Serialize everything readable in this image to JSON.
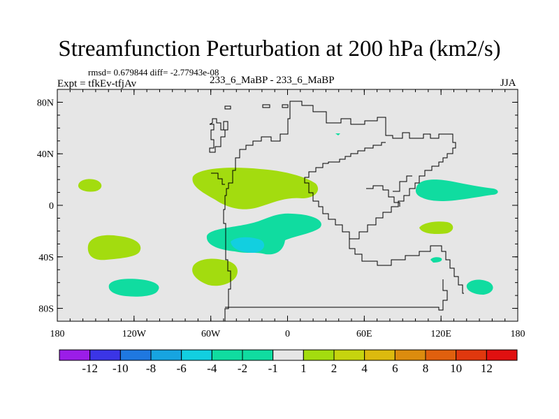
{
  "header": {
    "title": "Streamfunction Perturbation at 200 hPa (km2/s)",
    "stats": "rmsd= 0.679844 diff= -2.77943e-08",
    "expt": "Expt = tfkEv-tfjAv",
    "center": "233_6_MaBP - 233_6_MaBP",
    "season": "JJA"
  },
  "chart_data": {
    "type": "heatmap",
    "title": "Streamfunction Perturbation at 200 hPa (km2/s)",
    "xlim": [
      -180,
      180
    ],
    "ylim": [
      -90,
      90
    ],
    "x_ticks": [
      {
        "value": -180,
        "label": "180"
      },
      {
        "value": -120,
        "label": "120W"
      },
      {
        "value": -60,
        "label": "60W"
      },
      {
        "value": 0,
        "label": "0"
      },
      {
        "value": 60,
        "label": "60E"
      },
      {
        "value": 120,
        "label": "120E"
      },
      {
        "value": 180,
        "label": "180"
      }
    ],
    "y_ticks": [
      {
        "value": 80,
        "label": "80N"
      },
      {
        "value": 40,
        "label": "40N"
      },
      {
        "value": 0,
        "label": "0"
      },
      {
        "value": -40,
        "label": "40S"
      },
      {
        "value": -80,
        "label": "80S"
      }
    ],
    "background_color": "#e6e6e6",
    "colorbar": {
      "levels": [
        "-12",
        "-10",
        "-8",
        "-6",
        "-4",
        "-2",
        "-1",
        "1",
        "2",
        "4",
        "6",
        "8",
        "10",
        "12"
      ],
      "colors": [
        "#9b1de8",
        "#3b35e6",
        "#1f78e0",
        "#17a4e0",
        "#12cfe0",
        "#10dca0",
        "#e6e6e6",
        "#a3dc0f",
        "#c6d40e",
        "#dcba0e",
        "#dc8c0e",
        "#e0600e",
        "#e0380e",
        "#e01010"
      ]
    },
    "anomalies": [
      {
        "name": "n-atlantic-africa-positive",
        "category": "1 to 2",
        "center_lon": -30,
        "center_lat": 17
      },
      {
        "name": "s-atlantic-negative",
        "category": "-2 to -1",
        "center_lon": -25,
        "center_lat": -25
      },
      {
        "name": "s-atlantic-core",
        "category": "-4 to -2",
        "center_lon": -31,
        "center_lat": -31
      },
      {
        "name": "nw-pacific-negative",
        "category": "-2 to -1",
        "center_lon": 130,
        "center_lat": 13
      },
      {
        "name": "ne-pacific-positive",
        "category": "1 to 2",
        "center_lon": -155,
        "center_lat": 16
      },
      {
        "name": "s-pacific-positive",
        "category": "1 to 2",
        "center_lon": -148,
        "center_lat": -35
      },
      {
        "name": "s-pacific-negative",
        "category": "-2 to -1",
        "center_lon": -141,
        "center_lat": -62
      },
      {
        "name": "s-america-sw-positive",
        "category": "1 to 2",
        "center_lon": -75,
        "center_lat": -53
      },
      {
        "name": "indian-ocean-positive",
        "category": "1 to 2",
        "center_lon": 117,
        "center_lat": -17
      },
      {
        "name": "sw-pacific-negative",
        "category": "-2 to -1",
        "center_lon": 150,
        "center_lat": -64
      },
      {
        "name": "se-indian-small-negative",
        "category": "-2 to -1",
        "center_lon": 117,
        "center_lat": -42
      },
      {
        "name": "arctic-speck-negative",
        "category": "-2 to -1",
        "center_lon": 40,
        "center_lat": 57
      }
    ]
  }
}
